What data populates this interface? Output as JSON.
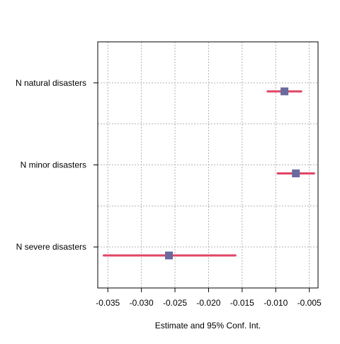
{
  "chart_data": {
    "type": "scatter",
    "title": "",
    "xlabel": "Estimate and 95% Conf. Int.",
    "ylabel": "",
    "xlim": [
      -0.0365,
      -0.0037
    ],
    "x_ticks": [
      -0.035,
      -0.03,
      -0.025,
      -0.02,
      -0.015,
      -0.01,
      -0.005
    ],
    "x_tick_labels": [
      "-0.035",
      "-0.030",
      "-0.025",
      "-0.020",
      "-0.015",
      "-0.010",
      "-0.005"
    ],
    "grid": true,
    "categories": [
      "N natural disasters",
      "N minor disasters",
      "N severe disasters"
    ],
    "series": [
      {
        "estimate": [
          -0.0087,
          -0.007,
          -0.0259
        ],
        "ci_low": [
          -0.0112,
          -0.0097,
          -0.0356
        ],
        "ci_high": [
          -0.0062,
          -0.0043,
          -0.016
        ]
      }
    ],
    "colors": {
      "point": "#6a6a9e",
      "interval": "#e04566",
      "grid": "#b3b3b3",
      "axis": "#000000"
    }
  }
}
